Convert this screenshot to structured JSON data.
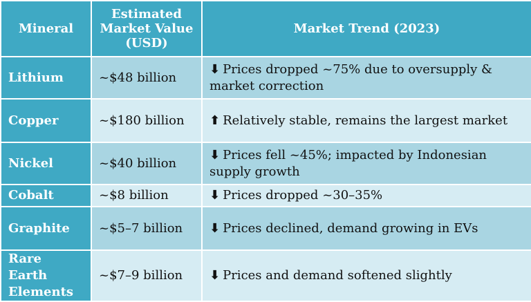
{
  "table": {
    "headers": {
      "mineral": "Mineral",
      "value": "Estimated Market Value (USD)",
      "trend": "Market Trend (2023)"
    },
    "rows": [
      {
        "mineral": "Lithium",
        "value": "~$48 billion",
        "arrow": "down-arrow",
        "arrow_char": "⬇",
        "trend": "Prices dropped ~75% due to oversupply & market correction"
      },
      {
        "mineral": "Copper",
        "value": "~$180 billion",
        "arrow": "up-arrow",
        "arrow_char": "⬆",
        "trend": "Relatively stable, remains the largest market"
      },
      {
        "mineral": "Nickel",
        "value": "~$40 billion",
        "arrow": "down-arrow",
        "arrow_char": "⬇",
        "trend": "Prices fell ~45%; impacted by Indonesian supply growth"
      },
      {
        "mineral": "Cobalt",
        "value": "~$8 billion",
        "arrow": "down-arrow",
        "arrow_char": "⬇",
        "trend": "Prices dropped ~30–35%"
      },
      {
        "mineral": "Graphite",
        "value": "~$5–7 billion",
        "arrow": "down-arrow",
        "arrow_char": "⬇",
        "trend": "Prices declined, demand growing in EVs"
      },
      {
        "mineral": "Rare Earth Elements",
        "value": "~$7–9 billion",
        "arrow": "down-arrow",
        "arrow_char": "⬇",
        "trend": "Prices and demand softened slightly"
      }
    ]
  },
  "colors": {
    "header_bg": "#3fa9c4",
    "row_dark": "#a9d5e2",
    "row_light": "#d6ecf3"
  }
}
